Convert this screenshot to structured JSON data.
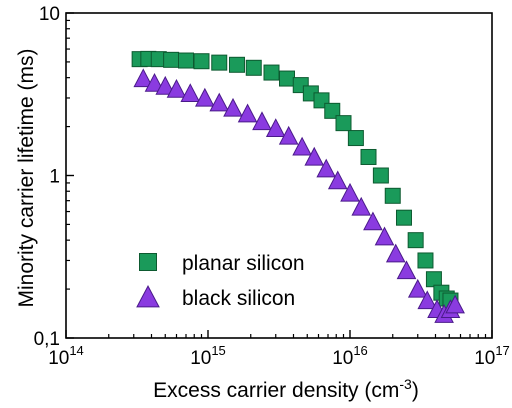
{
  "chart_data": {
    "type": "scatter",
    "title": "",
    "xlabel": "Excess carrier density (cm",
    "xlabel_sup": "-3",
    "xlabel_close": ")",
    "ylabel": "Minority carrier lifetime (ms)",
    "xscale": "log",
    "yscale": "log",
    "xlim": [
      100000000000000.0,
      1e+17
    ],
    "ylim": [
      0.1,
      10
    ],
    "grid": false,
    "legend_position": "bottom-left",
    "x_ticks": [
      {
        "value": 100000000000000.0,
        "base": "10",
        "exp": "14"
      },
      {
        "value": 1000000000000000.0,
        "base": "10",
        "exp": "15"
      },
      {
        "value": 1e+16,
        "base": "10",
        "exp": "16"
      },
      {
        "value": 1e+17,
        "base": "10",
        "exp": "17"
      }
    ],
    "y_ticks": [
      {
        "value": 0.1,
        "label": "0,1"
      },
      {
        "value": 1,
        "label": "1"
      },
      {
        "value": 10,
        "label": "10"
      }
    ],
    "series": [
      {
        "name": "planar silicon",
        "marker": "square",
        "color": "#1a9a5a",
        "edge": "#0d5a30",
        "x": [
          330000000000000.0,
          380000000000000.0,
          450000000000000.0,
          550000000000000.0,
          700000000000000.0,
          900000000000000.0,
          1200000000000000.0,
          1600000000000000.0,
          2100000000000000.0,
          2800000000000000.0,
          3600000000000000.0,
          4500000000000000.0,
          5300000000000000.0,
          6300000000000000.0,
          7500000000000000.0,
          9000000000000000.0,
          1.1e+16,
          1.35e+16,
          1.65e+16,
          2e+16,
          2.4e+16,
          2.9e+16,
          3.4e+16,
          3.9e+16,
          4.4e+16,
          4.8e+16,
          5.1e+16
        ],
        "y": [
          5.2,
          5.22,
          5.2,
          5.15,
          5.1,
          5.05,
          4.95,
          4.8,
          4.6,
          4.3,
          3.95,
          3.6,
          3.2,
          2.9,
          2.5,
          2.1,
          1.7,
          1.3,
          1.0,
          0.75,
          0.55,
          0.4,
          0.3,
          0.23,
          0.19,
          0.175,
          0.17
        ]
      },
      {
        "name": "black silicon",
        "marker": "triangle",
        "color": "#8a3be0",
        "edge": "#4a1a8a",
        "x": [
          350000000000000.0,
          420000000000000.0,
          500000000000000.0,
          600000000000000.0,
          750000000000000.0,
          950000000000000.0,
          1200000000000000.0,
          1500000000000000.0,
          1900000000000000.0,
          2400000000000000.0,
          3000000000000000.0,
          3700000000000000.0,
          4600000000000000.0,
          5600000000000000.0,
          6800000000000000.0,
          8200000000000000.0,
          1e+16,
          1.2e+16,
          1.45e+16,
          1.75e+16,
          2.1e+16,
          2.5e+16,
          3e+16,
          3.5e+16,
          4.1e+16,
          4.6e+16,
          5.1e+16,
          5.5e+16
        ],
        "y": [
          3.95,
          3.7,
          3.55,
          3.4,
          3.2,
          3.0,
          2.8,
          2.6,
          2.4,
          2.15,
          1.95,
          1.75,
          1.5,
          1.3,
          1.1,
          0.93,
          0.78,
          0.64,
          0.52,
          0.42,
          0.33,
          0.26,
          0.2,
          0.17,
          0.15,
          0.14,
          0.15,
          0.16
        ]
      }
    ]
  }
}
